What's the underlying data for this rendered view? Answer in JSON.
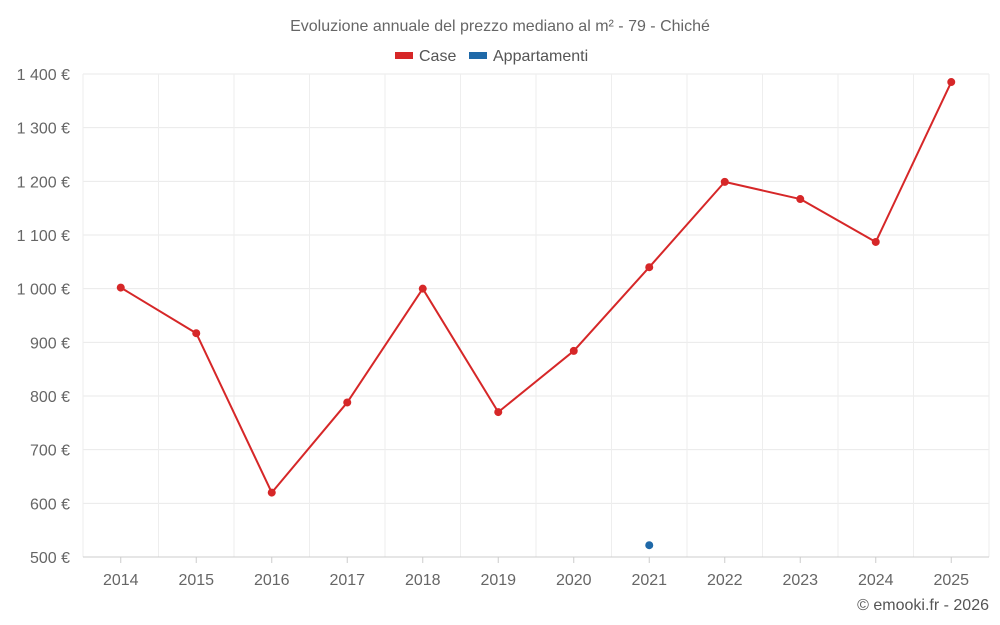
{
  "chart_data": {
    "type": "line",
    "title": "Evoluzione annuale del prezzo mediano al m² - 79 - Chiché",
    "categories": [
      "2014",
      "2015",
      "2016",
      "2017",
      "2018",
      "2019",
      "2020",
      "2021",
      "2022",
      "2023",
      "2024",
      "2025"
    ],
    "series": [
      {
        "name": "Case",
        "color": "#d62728",
        "values": [
          1002,
          917,
          620,
          788,
          1000,
          770,
          884,
          1040,
          1199,
          1167,
          1087,
          1385
        ]
      },
      {
        "name": "Appartamenti",
        "color": "#1f69a8",
        "values": [
          null,
          null,
          null,
          null,
          null,
          null,
          null,
          522,
          null,
          null,
          null,
          null
        ]
      }
    ],
    "ylim": [
      500,
      1400
    ],
    "yticks": [
      500,
      600,
      700,
      800,
      900,
      1000,
      1100,
      1200,
      1300,
      1400
    ],
    "ytick_labels": [
      "500 €",
      "600 €",
      "700 €",
      "800 €",
      "900 €",
      "1 000 €",
      "1 100 €",
      "1 200 €",
      "1 300 €",
      "1 400 €"
    ],
    "grid": true,
    "legend_position": "top-center",
    "credit": "© emooki.fr - 2026"
  }
}
